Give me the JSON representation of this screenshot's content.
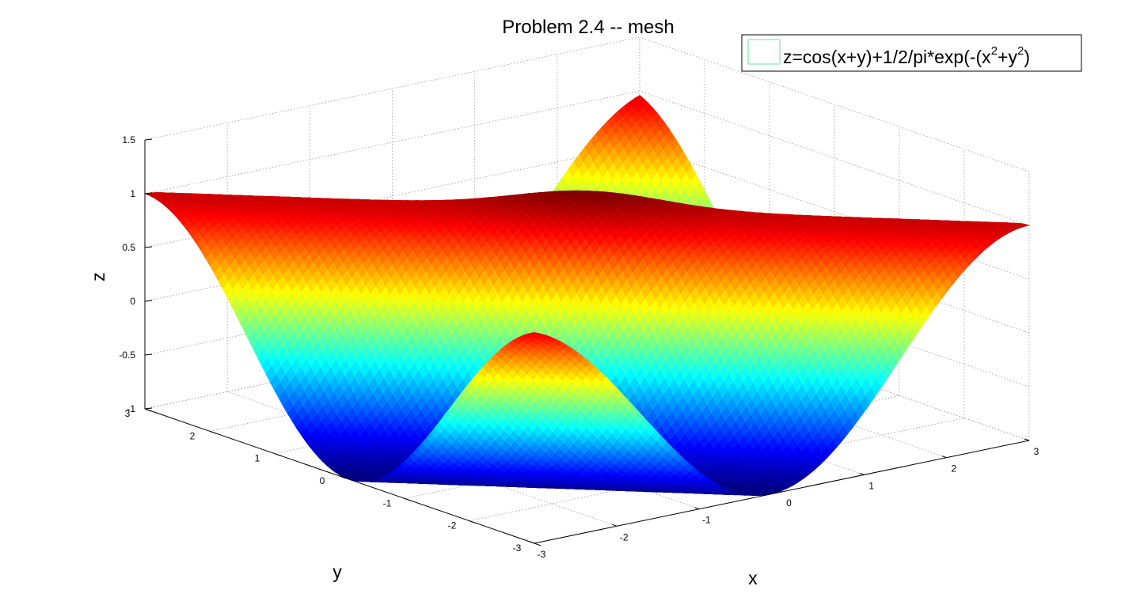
{
  "chart_data": {
    "type": "surface",
    "plot_style": "mesh",
    "title": "Problem 2.4 -- mesh",
    "xlabel": "x",
    "ylabel": "y",
    "zlabel": "z",
    "xlim": [
      -3,
      3
    ],
    "ylim": [
      -3,
      3
    ],
    "zlim": [
      -1,
      1.5
    ],
    "x_ticks": [
      "-3",
      "-2",
      "-1",
      "0",
      "1",
      "2",
      "3"
    ],
    "y_ticks": [
      "-3",
      "-2",
      "-1",
      "0",
      "1",
      "2",
      "3"
    ],
    "z_ticks": [
      "-1",
      "-0.5",
      "0",
      "0.5",
      "1",
      "1.5"
    ],
    "function": "cos(x+y) + exp(-(x^2+y^2)) / (2*pi)",
    "grid": true,
    "colormap": "jet",
    "legend_position": "top-right",
    "legend": {
      "prefix": "z=cos(x+y)+1/2/pi*exp(-(x",
      "sup1": "2",
      "middle": "+y",
      "sup2": "2",
      "suffix": ")",
      "swatch_color": "#98ecc0"
    }
  }
}
